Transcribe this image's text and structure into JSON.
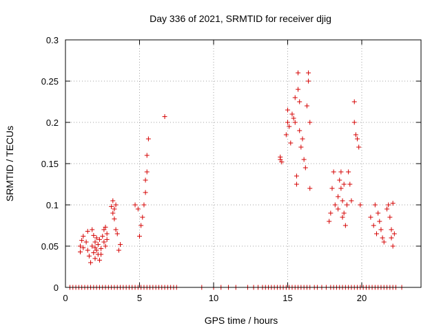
{
  "chart_data": {
    "type": "scatter",
    "title": "Day 336 of 2021, SRMTID for receiver djig",
    "xlabel": "GPS time / hours",
    "ylabel": "SRMTID / TECUs",
    "xlim": [
      0,
      24
    ],
    "ylim": [
      0,
      0.3
    ],
    "xticks": [
      0,
      5,
      10,
      15,
      20
    ],
    "xtick_labels": [
      "0",
      "5",
      "10",
      "15",
      "20"
    ],
    "yticks": [
      0,
      0.05,
      0.1,
      0.15,
      0.2,
      0.25,
      0.3
    ],
    "ytick_labels": [
      "0",
      "0.05",
      "0.1",
      "0.15",
      "0.2",
      "0.25",
      "0.3"
    ],
    "grid": true,
    "marker": "plus",
    "color": "#d40000",
    "series": [
      {
        "name": "SRMTID",
        "x": [
          0.3,
          0.5,
          0.7,
          0.9,
          1.1,
          1.3,
          1.5,
          1.7,
          1.9,
          2.1,
          2.3,
          2.5,
          2.7,
          2.9,
          3.1,
          3.3,
          3.5,
          3.7,
          3.9,
          4.1,
          4.3,
          4.5,
          4.7,
          4.9,
          5.1,
          5.3,
          5.5,
          5.7,
          5.9,
          6.1,
          6.3,
          6.5,
          6.7,
          6.9,
          7.1,
          7.3,
          7.5,
          9.2,
          10.0,
          10.5,
          11.0,
          11.5,
          12.3,
          12.7,
          13.0,
          13.3,
          13.5,
          13.7,
          13.9,
          14.1,
          14.3,
          14.5,
          14.7,
          14.9,
          15.1,
          15.3,
          15.5,
          15.7,
          15.9,
          16.1,
          16.3,
          16.5,
          16.8,
          17.0,
          17.3,
          17.6,
          17.9,
          18.1,
          18.3,
          18.5,
          18.7,
          18.9,
          19.1,
          19.3,
          19.5,
          19.7,
          19.9,
          20.1,
          20.3,
          20.5,
          20.7,
          20.9,
          21.1,
          21.3,
          21.5,
          21.7,
          21.9,
          22.1,
          22.3,
          22.7,
          1.0,
          1.0,
          1.1,
          1.2,
          1.2,
          1.4,
          1.5,
          1.5,
          1.6,
          1.7,
          1.8,
          1.8,
          1.9,
          1.9,
          2.0,
          2.0,
          2.0,
          2.1,
          2.1,
          2.2,
          2.2,
          2.3,
          2.3,
          2.4,
          2.4,
          2.5,
          2.6,
          2.6,
          2.7,
          2.7,
          2.8,
          2.8,
          3.1,
          3.2,
          3.2,
          3.3,
          3.3,
          3.4,
          3.4,
          3.5,
          3.6,
          3.7,
          4.7,
          4.9,
          5.0,
          5.1,
          5.2,
          5.3,
          5.4,
          5.4,
          5.5,
          5.5,
          5.6,
          6.7,
          14.5,
          14.5,
          14.6,
          14.9,
          15.0,
          15.0,
          15.1,
          15.2,
          15.3,
          15.4,
          15.5,
          15.5,
          15.6,
          15.6,
          15.7,
          15.7,
          15.8,
          15.8,
          15.9,
          16.0,
          16.1,
          16.2,
          16.3,
          16.4,
          16.4,
          16.5,
          16.5,
          17.8,
          17.9,
          18.0,
          18.1,
          18.2,
          18.4,
          18.4,
          18.5,
          18.6,
          18.6,
          18.7,
          18.7,
          18.8,
          18.8,
          18.9,
          19.0,
          19.1,
          19.2,
          19.3,
          19.5,
          19.5,
          19.6,
          19.7,
          19.8,
          19.9,
          20.6,
          20.8,
          20.9,
          21.0,
          21.1,
          21.2,
          21.3,
          21.4,
          21.5,
          21.7,
          21.8,
          21.9,
          22.0,
          22.0,
          22.1,
          22.1,
          22.2
        ],
        "y": [
          0,
          0,
          0,
          0,
          0,
          0,
          0,
          0,
          0,
          0,
          0,
          0,
          0,
          0,
          0,
          0,
          0,
          0,
          0,
          0,
          0,
          0,
          0,
          0,
          0,
          0,
          0,
          0,
          0,
          0,
          0,
          0,
          0,
          0,
          0,
          0,
          0,
          0,
          0,
          0,
          0,
          0,
          0,
          0,
          0,
          0,
          0,
          0,
          0,
          0,
          0,
          0,
          0,
          0,
          0,
          0,
          0,
          0,
          0,
          0,
          0,
          0,
          0,
          0,
          0,
          0,
          0,
          0,
          0,
          0,
          0,
          0,
          0,
          0,
          0,
          0,
          0,
          0,
          0,
          0,
          0,
          0,
          0,
          0,
          0,
          0,
          0,
          0,
          0,
          0,
          0.05,
          0.043,
          0.057,
          0.048,
          0.062,
          0.055,
          0.045,
          0.068,
          0.038,
          0.03,
          0.07,
          0.05,
          0.063,
          0.042,
          0.035,
          0.055,
          0.048,
          0.06,
          0.045,
          0.04,
          0.052,
          0.033,
          0.058,
          0.047,
          0.04,
          0.062,
          0.055,
          0.07,
          0.05,
          0.073,
          0.065,
          0.058,
          0.098,
          0.105,
          0.09,
          0.083,
          0.095,
          0.07,
          0.1,
          0.065,
          0.045,
          0.052,
          0.1,
          0.095,
          0.062,
          0.075,
          0.085,
          0.1,
          0.115,
          0.13,
          0.14,
          0.16,
          0.18,
          0.207,
          0.155,
          0.158,
          0.152,
          0.185,
          0.2,
          0.215,
          0.195,
          0.175,
          0.21,
          0.205,
          0.2,
          0.23,
          0.125,
          0.135,
          0.26,
          0.24,
          0.225,
          0.19,
          0.17,
          0.18,
          0.155,
          0.145,
          0.22,
          0.26,
          0.25,
          0.2,
          0.12,
          0.08,
          0.09,
          0.12,
          0.14,
          0.1,
          0.11,
          0.095,
          0.13,
          0.14,
          0.12,
          0.105,
          0.085,
          0.09,
          0.125,
          0.075,
          0.1,
          0.14,
          0.125,
          0.105,
          0.225,
          0.2,
          0.185,
          0.18,
          0.17,
          0.1,
          0.085,
          0.075,
          0.1,
          0.065,
          0.09,
          0.08,
          0.07,
          0.06,
          0.055,
          0.095,
          0.1,
          0.085,
          0.07,
          0.06,
          0.05,
          0.102,
          0.065
        ]
      }
    ]
  }
}
